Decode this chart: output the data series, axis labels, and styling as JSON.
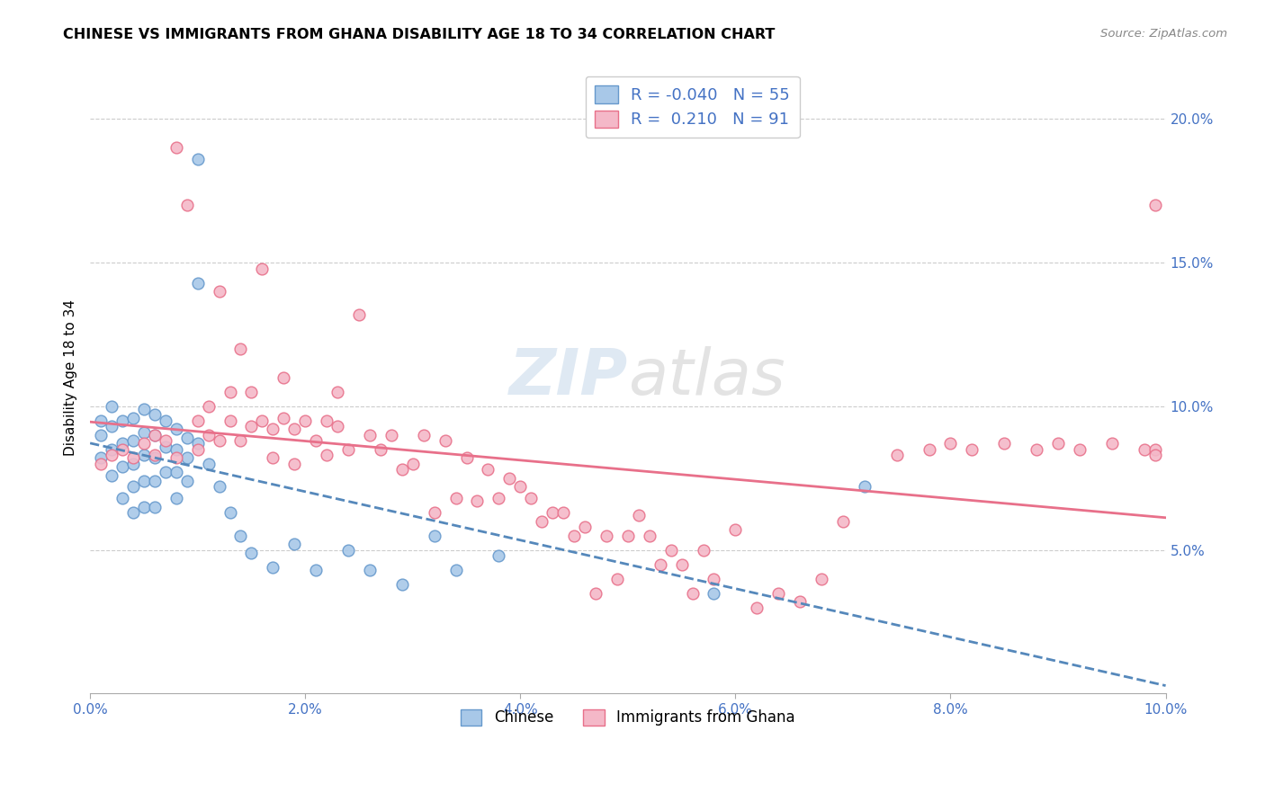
{
  "title": "CHINESE VS IMMIGRANTS FROM GHANA DISABILITY AGE 18 TO 34 CORRELATION CHART",
  "source": "Source: ZipAtlas.com",
  "ylabel": "Disability Age 18 to 34",
  "xlim": [
    0.0,
    0.1
  ],
  "ylim": [
    0.0,
    0.22
  ],
  "xtick_labels": [
    "0.0%",
    "2.0%",
    "4.0%",
    "6.0%",
    "8.0%",
    "10.0%"
  ],
  "xtick_vals": [
    0.0,
    0.02,
    0.04,
    0.06,
    0.08,
    0.1
  ],
  "ytick_labels_right": [
    "20.0%",
    "15.0%",
    "10.0%",
    "5.0%"
  ],
  "ytick_vals_right": [
    0.2,
    0.15,
    0.1,
    0.05
  ],
  "legend_chinese_R": "-0.040",
  "legend_chinese_N": "55",
  "legend_ghana_R": "0.210",
  "legend_ghana_N": "91",
  "legend_label_chinese": "Chinese",
  "legend_label_ghana": "Immigrants from Ghana",
  "color_chinese_fill": "#A8C8E8",
  "color_chinese_edge": "#6699CC",
  "color_ghana_fill": "#F4B8C8",
  "color_ghana_edge": "#E8708A",
  "color_chinese_line": "#5588BB",
  "color_ghana_line": "#E8708A",
  "watermark_color": "#C8D8E8",
  "background_color": "#FFFFFF",
  "chinese_x": [
    0.001,
    0.001,
    0.002,
    0.002,
    0.002,
    0.002,
    0.003,
    0.003,
    0.003,
    0.003,
    0.004,
    0.004,
    0.004,
    0.004,
    0.004,
    0.005,
    0.005,
    0.005,
    0.005,
    0.005,
    0.006,
    0.006,
    0.006,
    0.006,
    0.006,
    0.007,
    0.007,
    0.007,
    0.008,
    0.008,
    0.008,
    0.008,
    0.009,
    0.009,
    0.009,
    0.01,
    0.01,
    0.01,
    0.011,
    0.012,
    0.013,
    0.014,
    0.015,
    0.017,
    0.019,
    0.021,
    0.024,
    0.026,
    0.029,
    0.032,
    0.034,
    0.038,
    0.058,
    0.072,
    0.001
  ],
  "chinese_y": [
    0.09,
    0.082,
    0.1,
    0.093,
    0.085,
    0.076,
    0.095,
    0.087,
    0.079,
    0.068,
    0.096,
    0.088,
    0.08,
    0.072,
    0.063,
    0.099,
    0.091,
    0.083,
    0.074,
    0.065,
    0.097,
    0.09,
    0.082,
    0.074,
    0.065,
    0.095,
    0.086,
    0.077,
    0.092,
    0.085,
    0.077,
    0.068,
    0.089,
    0.082,
    0.074,
    0.186,
    0.143,
    0.087,
    0.08,
    0.072,
    0.063,
    0.055,
    0.049,
    0.044,
    0.052,
    0.043,
    0.05,
    0.043,
    0.038,
    0.055,
    0.043,
    0.048,
    0.035,
    0.072,
    0.095
  ],
  "ghana_x": [
    0.001,
    0.002,
    0.003,
    0.004,
    0.005,
    0.006,
    0.006,
    0.007,
    0.008,
    0.008,
    0.009,
    0.01,
    0.01,
    0.011,
    0.011,
    0.012,
    0.012,
    0.013,
    0.013,
    0.014,
    0.014,
    0.015,
    0.015,
    0.016,
    0.016,
    0.017,
    0.017,
    0.018,
    0.018,
    0.019,
    0.019,
    0.02,
    0.021,
    0.022,
    0.022,
    0.023,
    0.023,
    0.024,
    0.025,
    0.026,
    0.027,
    0.028,
    0.029,
    0.03,
    0.031,
    0.032,
    0.033,
    0.034,
    0.035,
    0.036,
    0.037,
    0.038,
    0.039,
    0.04,
    0.041,
    0.042,
    0.043,
    0.044,
    0.045,
    0.046,
    0.047,
    0.048,
    0.049,
    0.05,
    0.051,
    0.052,
    0.053,
    0.054,
    0.055,
    0.056,
    0.057,
    0.058,
    0.06,
    0.062,
    0.064,
    0.066,
    0.068,
    0.07,
    0.075,
    0.078,
    0.08,
    0.082,
    0.085,
    0.088,
    0.09,
    0.092,
    0.095,
    0.098,
    0.099,
    0.099,
    0.099
  ],
  "ghana_y": [
    0.08,
    0.083,
    0.085,
    0.082,
    0.087,
    0.09,
    0.083,
    0.088,
    0.19,
    0.082,
    0.17,
    0.095,
    0.085,
    0.1,
    0.09,
    0.14,
    0.088,
    0.105,
    0.095,
    0.12,
    0.088,
    0.105,
    0.093,
    0.148,
    0.095,
    0.092,
    0.082,
    0.11,
    0.096,
    0.092,
    0.08,
    0.095,
    0.088,
    0.095,
    0.083,
    0.105,
    0.093,
    0.085,
    0.132,
    0.09,
    0.085,
    0.09,
    0.078,
    0.08,
    0.09,
    0.063,
    0.088,
    0.068,
    0.082,
    0.067,
    0.078,
    0.068,
    0.075,
    0.072,
    0.068,
    0.06,
    0.063,
    0.063,
    0.055,
    0.058,
    0.035,
    0.055,
    0.04,
    0.055,
    0.062,
    0.055,
    0.045,
    0.05,
    0.045,
    0.035,
    0.05,
    0.04,
    0.057,
    0.03,
    0.035,
    0.032,
    0.04,
    0.06,
    0.083,
    0.085,
    0.087,
    0.085,
    0.087,
    0.085,
    0.087,
    0.085,
    0.087,
    0.085,
    0.085,
    0.083,
    0.17
  ]
}
